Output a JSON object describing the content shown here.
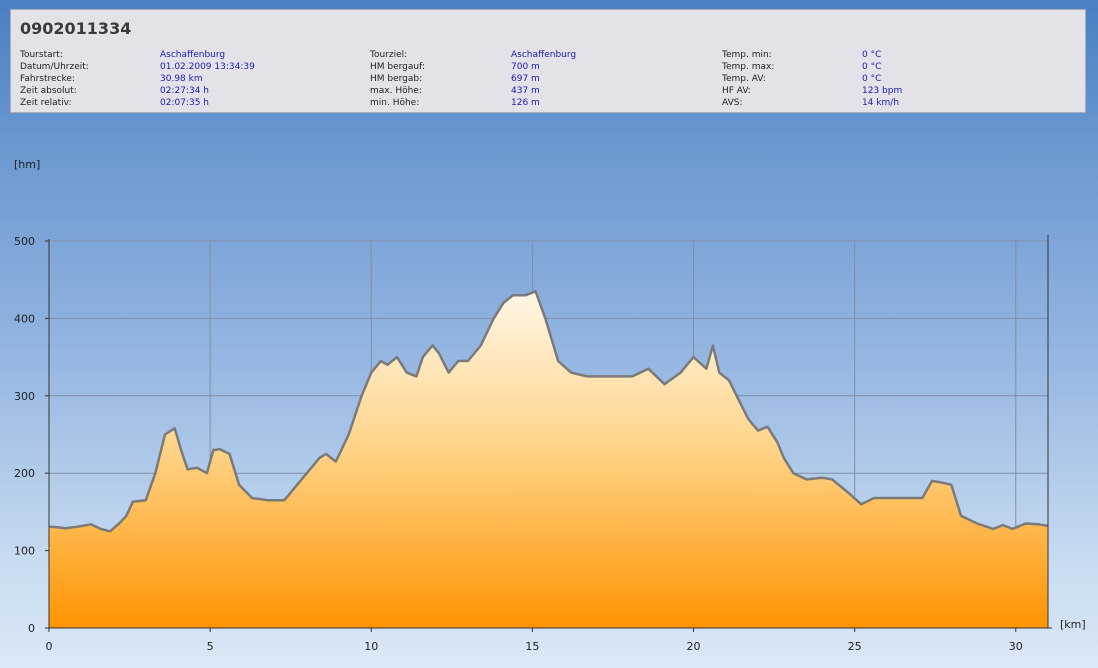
{
  "header": {
    "tour_id": "0902011334",
    "columns": [
      {
        "labels": [
          "Tourstart:",
          "Datum/Uhrzeit:",
          "Fahrstrecke:",
          "Zeit absolut:",
          "Zeit relativ:"
        ],
        "values": [
          "Aschaffenburg",
          "01.02.2009 13:34:39",
          "30.98 km",
          "02:27:34 h",
          "02:07:35 h"
        ]
      },
      {
        "labels": [
          "Tourziel:",
          "HM bergauf:",
          "HM bergab:",
          "max. Höhe:",
          "min. Höhe:"
        ],
        "values": [
          "Aschaffenburg",
          "700 m",
          "697 m",
          "437 m",
          "126 m"
        ]
      },
      {
        "labels": [
          "Temp. min:",
          "Temp. max:",
          "Temp. AV:",
          "HF AV:",
          "AVS:"
        ],
        "values": [
          "0 °C",
          "0 °C",
          "0 °C",
          "123 bpm",
          "14 km/h"
        ]
      }
    ]
  },
  "colors": {
    "fill_top": "#fff6e6",
    "fill_bottom": "#ff9400",
    "profile_line": "#7a7a7a",
    "value_text": "#1a1ab0"
  },
  "chart_data": {
    "type": "area",
    "title": "",
    "xlabel": "[km]",
    "ylabel": "[hm]",
    "xlim": [
      0,
      31
    ],
    "ylim": [
      0,
      500
    ],
    "x_ticks": [
      0,
      5,
      10,
      15,
      20,
      25,
      30
    ],
    "y_ticks": [
      0,
      100,
      200,
      300,
      400,
      500
    ],
    "grid": true,
    "x": [
      0,
      0.3,
      0.5,
      0.9,
      1.3,
      1.6,
      1.9,
      2.2,
      2.4,
      2.6,
      3.0,
      3.3,
      3.6,
      3.9,
      4.1,
      4.3,
      4.6,
      4.9,
      5.1,
      5.3,
      5.6,
      5.9,
      6.3,
      6.8,
      7.3,
      7.6,
      8.0,
      8.4,
      8.6,
      8.9,
      9.3,
      9.7,
      10.0,
      10.3,
      10.5,
      10.8,
      11.1,
      11.4,
      11.6,
      11.9,
      12.1,
      12.4,
      12.7,
      13.0,
      13.4,
      13.8,
      14.1,
      14.4,
      14.8,
      15.1,
      15.4,
      15.8,
      16.2,
      16.7,
      17.2,
      17.6,
      18.1,
      18.6,
      19.1,
      19.6,
      20.0,
      20.4,
      20.6,
      20.8,
      21.1,
      21.4,
      21.7,
      22.0,
      22.3,
      22.6,
      22.8,
      23.1,
      23.5,
      24.0,
      24.3,
      24.8,
      25.2,
      25.6,
      26.1,
      26.6,
      27.1,
      27.4,
      27.7,
      28.0,
      28.3,
      28.8,
      29.3,
      29.6,
      29.9,
      30.3,
      30.7,
      31.0
    ],
    "values": [
      131,
      130,
      129,
      131,
      134,
      128,
      125,
      136,
      145,
      163,
      165,
      200,
      250,
      258,
      230,
      205,
      207,
      200,
      230,
      231,
      225,
      185,
      168,
      165,
      165,
      180,
      200,
      220,
      225,
      215,
      250,
      300,
      330,
      345,
      340,
      350,
      330,
      325,
      350,
      365,
      355,
      330,
      345,
      345,
      365,
      400,
      420,
      430,
      430,
      435,
      400,
      345,
      330,
      325,
      325,
      325,
      325,
      335,
      315,
      330,
      350,
      335,
      365,
      330,
      320,
      295,
      270,
      255,
      260,
      240,
      220,
      200,
      192,
      194,
      192,
      175,
      160,
      168,
      168,
      168,
      168,
      190,
      188,
      185,
      145,
      135,
      128,
      133,
      128,
      135,
      134,
      132
    ]
  }
}
